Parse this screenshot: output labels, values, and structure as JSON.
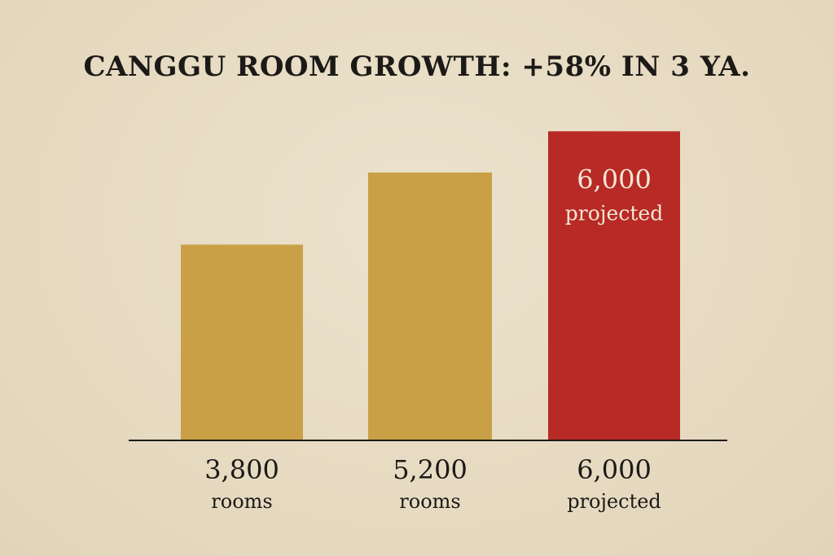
{
  "chart_data": {
    "type": "bar",
    "title": "CANGGU ROOM GROWTH: +58% IN 3 YA.",
    "categories": [
      "3,800 rooms",
      "5,200 rooms",
      "6,000 projected"
    ],
    "values": [
      3800,
      5200,
      6000
    ],
    "value_labels": [
      "3,800",
      "5,200",
      "6,000"
    ],
    "unit_labels": [
      "rooms",
      "rooms",
      "projected"
    ],
    "highlight": {
      "index": 2,
      "value_label": "6,000",
      "unit_label": "projected"
    },
    "colors": {
      "bar": "#c9a046",
      "highlight": "#b82a25",
      "axis": "#1c1a17",
      "background": "#e8dcc4"
    },
    "ylim": [
      0,
      6700
    ],
    "grid": false,
    "legend": "none"
  }
}
